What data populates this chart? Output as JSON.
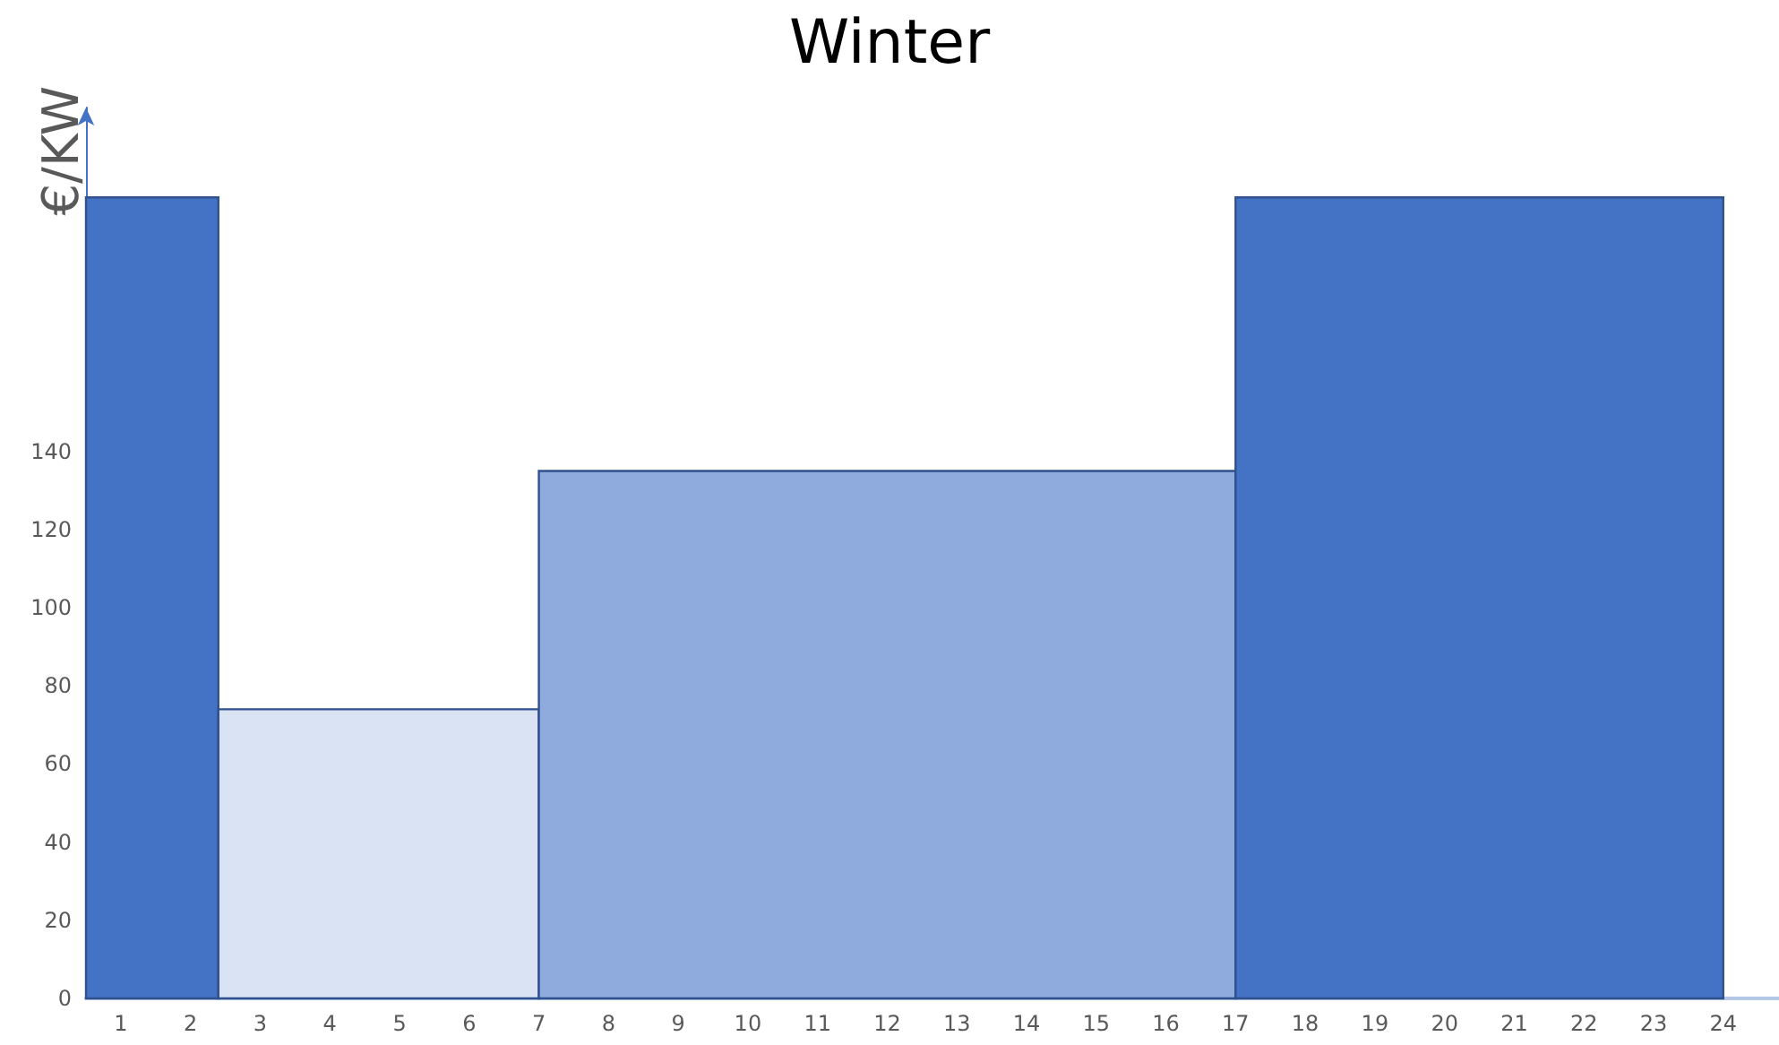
{
  "chart_data": {
    "type": "histogram",
    "title": "Winter",
    "ylabel": "€/KW",
    "bins": [
      0.5,
      2.4,
      7,
      17,
      24
    ],
    "values": [
      205,
      74,
      135,
      205
    ],
    "colors": [
      "#4472c4",
      "#dae3f3",
      "#8faadc",
      "#4472c4"
    ],
    "xlim": [
      0.5,
      24.8
    ],
    "xticks": [
      1,
      2,
      3,
      4,
      5,
      6,
      7,
      8,
      9,
      10,
      11,
      12,
      13,
      14,
      15,
      16,
      17,
      18,
      19,
      20,
      21,
      22,
      23,
      24
    ],
    "ylim": [
      0,
      228
    ],
    "yticks": [
      0,
      20,
      40,
      60,
      80,
      100,
      120,
      140
    ],
    "grid": false
  }
}
